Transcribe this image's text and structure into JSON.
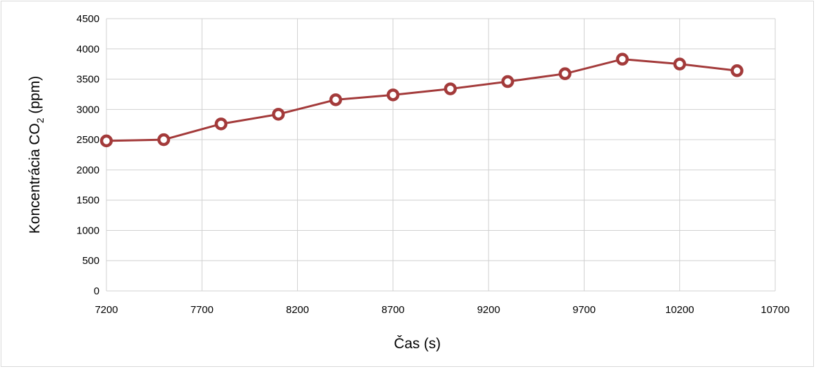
{
  "chart_data": {
    "type": "line",
    "title": "",
    "xlabel": "Čas (s)",
    "ylabel": {
      "prefix": "Koncentrácia CO",
      "subscript": "2",
      "suffix": " (ppm)"
    },
    "xlim": [
      7200,
      10700
    ],
    "ylim": [
      0,
      4500
    ],
    "x_ticks": [
      "7200",
      "7700",
      "8200",
      "8700",
      "9200",
      "9700",
      "10200",
      "10700"
    ],
    "y_ticks": [
      "0",
      "500",
      "1000",
      "1500",
      "2000",
      "2500",
      "3000",
      "3500",
      "4000",
      "4500"
    ],
    "grid": true,
    "legend": "none",
    "series": [
      {
        "color": "#a33a3a",
        "x": [
          7200,
          7500,
          7800,
          8100,
          8400,
          8700,
          9000,
          9300,
          9600,
          9900,
          10200,
          10500
        ],
        "y": [
          2480,
          2500,
          2760,
          2920,
          3160,
          3240,
          3340,
          3460,
          3590,
          3830,
          3750,
          3640
        ]
      }
    ]
  }
}
